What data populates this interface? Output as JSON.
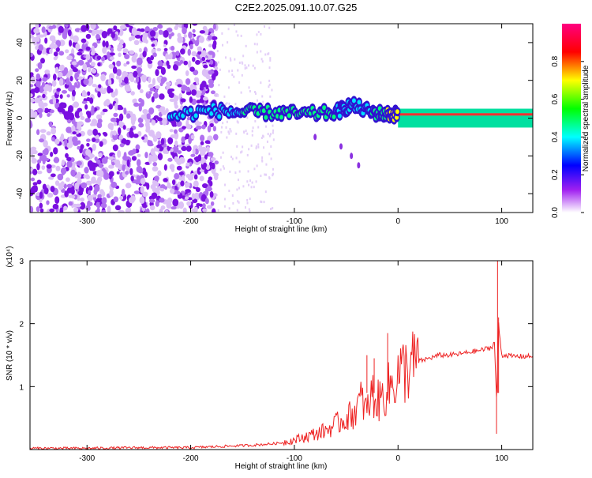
{
  "title": "C2E2.2025.091.10.07.G25",
  "colors": {
    "snr_line": "#ee2222",
    "noise_dot": "#8a1fe6",
    "axis": "#000000"
  },
  "chart_data": [
    {
      "type": "heatmap",
      "name": "spectrogram",
      "xlabel": "Height of straight line (km)",
      "ylabel": "Frequency (Hz)",
      "xlim": [
        -355,
        130
      ],
      "ylim": [
        -50,
        50
      ],
      "xticks": [
        -300,
        -200,
        -100,
        0,
        100
      ],
      "yticks": [
        -40,
        -20,
        0,
        20,
        40
      ],
      "colorbar": {
        "label": "Normalized spectral amplitude",
        "range": [
          0,
          1
        ],
        "ticks": [
          "0.0",
          "0.2",
          "0.4",
          "0.6",
          "0.8"
        ],
        "colors": [
          "#ffffff",
          "#a020f0",
          "#0000ff",
          "#00ffff",
          "#00ff00",
          "#ffff00",
          "#ff0000",
          "#ff0080"
        ]
      },
      "signal_track": [
        {
          "x": -220,
          "y": 1,
          "amp": 0.45
        },
        {
          "x": -180,
          "y": 4,
          "amp": 0.5
        },
        {
          "x": -150,
          "y": 3,
          "amp": 0.55
        },
        {
          "x": -120,
          "y": 3,
          "amp": 0.6
        },
        {
          "x": -90,
          "y": 2,
          "amp": 0.55
        },
        {
          "x": -60,
          "y": 3,
          "amp": 0.5
        },
        {
          "x": -45,
          "y": 7,
          "amp": 0.5
        },
        {
          "x": -25,
          "y": 3,
          "amp": 0.6
        },
        {
          "x": -10,
          "y": 2,
          "amp": 0.8
        },
        {
          "x": 0,
          "y": 2,
          "amp": 0.9
        },
        {
          "x": 50,
          "y": 2,
          "amp": 0.9
        },
        {
          "x": 100,
          "y": 2,
          "amp": 0.9
        },
        {
          "x": 130,
          "y": 2,
          "amp": 0.9
        }
      ],
      "branch": [
        {
          "x": -80,
          "y": -10
        },
        {
          "x": -55,
          "y": -15
        },
        {
          "x": -45,
          "y": -20
        },
        {
          "x": -38,
          "y": -25
        }
      ],
      "noise_region": {
        "x_start": -355,
        "x_end": -175,
        "sparse_until": -120
      }
    },
    {
      "type": "line",
      "name": "snr",
      "xlabel": "Height of straight line (km)",
      "ylabel": "SNR (10 * v/v)",
      "scale_label": "(x10⁴)",
      "xlim": [
        -355,
        130
      ],
      "ylim": [
        0,
        3
      ],
      "xticks": [
        -300,
        -200,
        -100,
        0,
        100
      ],
      "yticks": [
        1,
        2,
        3
      ],
      "series": [
        {
          "x": [
            -355,
            -300,
            -250,
            -200,
            -170,
            -140,
            -115,
            -100,
            -90,
            -80,
            -70,
            -60,
            -50,
            -45,
            -40,
            -35,
            -30,
            -25,
            -20,
            -15,
            -10,
            -5,
            0,
            10,
            20,
            30,
            40,
            50,
            60,
            70,
            80,
            85,
            90,
            93,
            95,
            97,
            100,
            105,
            110,
            120,
            130
          ],
          "y": [
            0.02,
            0.02,
            0.03,
            0.03,
            0.05,
            0.07,
            0.1,
            0.15,
            0.2,
            0.25,
            0.3,
            0.4,
            0.5,
            0.55,
            0.65,
            0.8,
            0.6,
            0.9,
            0.75,
            0.85,
            0.95,
            1.05,
            1.2,
            1.3,
            1.4,
            1.45,
            1.5,
            1.5,
            1.52,
            1.55,
            1.58,
            1.6,
            1.62,
            1.7,
            0.8,
            2.0,
            1.5,
            1.5,
            1.48,
            1.48,
            1.48
          ],
          "spikes": [
            {
              "x": -30,
              "y": 1.5
            },
            {
              "x": -23,
              "y": 1.45
            },
            {
              "x": -10,
              "y": 1.85
            },
            {
              "x": 95,
              "y": 0.25
            },
            {
              "x": 96,
              "y": 3.0
            },
            {
              "x": 97,
              "y": 2.1
            }
          ]
        }
      ]
    }
  ]
}
